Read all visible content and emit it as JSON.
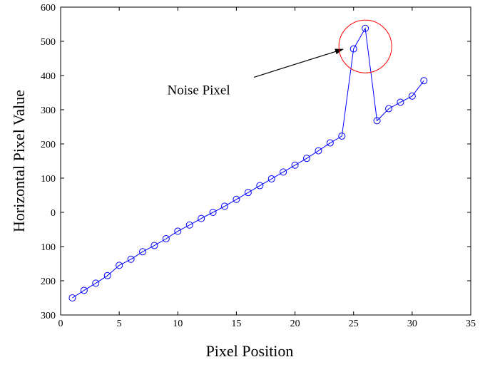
{
  "chart_data": {
    "type": "line",
    "title": "",
    "xlabel": "Pixel Position",
    "ylabel": "Horizontal Pixel Value",
    "xlim": [
      0,
      35
    ],
    "ylim": [
      -300,
      600
    ],
    "x_ticks": [
      0,
      5,
      10,
      15,
      20,
      25,
      30,
      35
    ],
    "y_ticks": [
      600,
      500,
      400,
      300,
      200,
      100,
      0,
      -100,
      -200,
      -300
    ],
    "y_tick_labels": [
      "600",
      "500",
      "400",
      "300",
      "200",
      "100",
      "0",
      "100",
      "200",
      "300"
    ],
    "grid": false,
    "series": [
      {
        "color": "#0000ff",
        "marker": "circle",
        "x": [
          1,
          2,
          3,
          4,
          5,
          6,
          7,
          8,
          9,
          10,
          11,
          12,
          13,
          14,
          15,
          16,
          17,
          18,
          19,
          20,
          21,
          22,
          23,
          24,
          25,
          26,
          27,
          28,
          29,
          30,
          31
        ],
        "y": [
          -250,
          -228,
          -207,
          -185,
          -155,
          -137,
          -115,
          -97,
          -77,
          -55,
          -37,
          -18,
          0,
          18,
          38,
          58,
          78,
          98,
          118,
          138,
          158,
          180,
          203,
          223,
          478,
          538,
          268,
          303,
          322,
          340,
          385
        ]
      }
    ],
    "annotations": [
      {
        "type": "text",
        "text": "Noise Pixel",
        "x": 9.1,
        "y": 345
      },
      {
        "type": "arrow",
        "from": [
          16.5,
          395
        ],
        "to": [
          24.1,
          477
        ]
      },
      {
        "type": "circle",
        "center": [
          26.0,
          485
        ],
        "color": "#ff0000"
      }
    ]
  }
}
